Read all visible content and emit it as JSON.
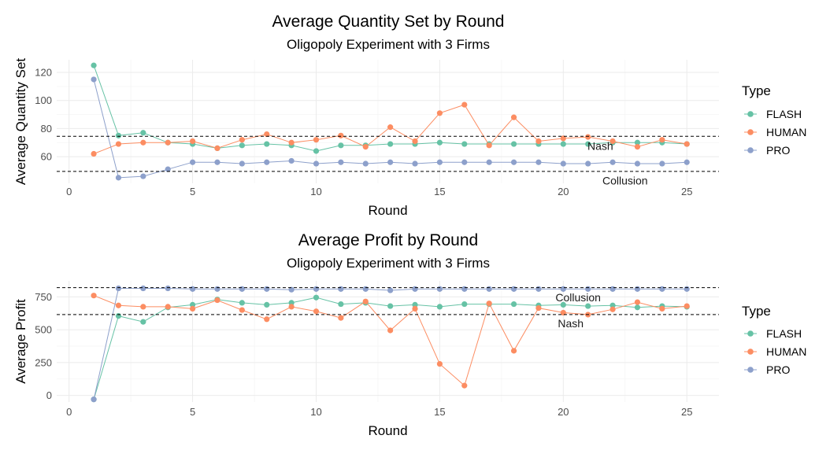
{
  "chart_data": [
    {
      "type": "line",
      "title": "Average Quantity Set by Round",
      "subtitle": "Oligopoly Experiment with 3 Firms",
      "xlabel": "Round",
      "ylabel": "Average Quantity Set",
      "xlim": [
        -0.5,
        26.3
      ],
      "ylim": [
        41,
        129
      ],
      "x_ticks": [
        0,
        5,
        10,
        15,
        20,
        25
      ],
      "y_ticks": [
        60,
        80,
        100,
        120
      ],
      "grid": true,
      "x": [
        1,
        2,
        3,
        4,
        5,
        6,
        7,
        8,
        9,
        10,
        11,
        12,
        13,
        14,
        15,
        16,
        17,
        18,
        19,
        20,
        21,
        22,
        23,
        24,
        25
      ],
      "series": [
        {
          "name": "FLASH",
          "color": "#66c2a5",
          "values": [
            125,
            75,
            77,
            70,
            69,
            66,
            68,
            69,
            68,
            64,
            68,
            68,
            69,
            69,
            70,
            69,
            69,
            69,
            69,
            69,
            69,
            70,
            70,
            70,
            69
          ]
        },
        {
          "name": "HUMAN",
          "color": "#fc8d62",
          "values": [
            62,
            69,
            70,
            70,
            71,
            66,
            72,
            76,
            70,
            72,
            75,
            67,
            81,
            71,
            91,
            97,
            68,
            88,
            71,
            73,
            74,
            71,
            67,
            72,
            69
          ]
        },
        {
          "name": "PRO",
          "color": "#8da0cb",
          "values": [
            115,
            45,
            46,
            51,
            56,
            56,
            55,
            56,
            57,
            55,
            56,
            55,
            56,
            55,
            56,
            56,
            56,
            56,
            56,
            55,
            55,
            56,
            55,
            55,
            56
          ]
        }
      ],
      "reference_lines": [
        {
          "label": "Nash",
          "y": 74.5,
          "label_x": 21.5,
          "label_y": 67.5
        },
        {
          "label": "Collusion",
          "y": 49.5,
          "label_x": 22.5,
          "label_y": 43
        }
      ],
      "legend": {
        "title": "Type",
        "position": "right"
      }
    },
    {
      "type": "line",
      "title": "Average Profit by Round",
      "subtitle": "Oligopoly Experiment with 3 Firms",
      "xlabel": "Round",
      "ylabel": "Average Profit",
      "xlim": [
        -0.5,
        26.3
      ],
      "ylim": [
        -50,
        872
      ],
      "x_ticks": [
        0,
        5,
        10,
        15,
        20,
        25
      ],
      "y_ticks": [
        0,
        250,
        500,
        750
      ],
      "grid": true,
      "x": [
        1,
        2,
        3,
        4,
        5,
        6,
        7,
        8,
        9,
        10,
        11,
        12,
        13,
        14,
        15,
        16,
        17,
        18,
        19,
        20,
        21,
        22,
        23,
        24,
        25
      ],
      "series": [
        {
          "name": "FLASH",
          "color": "#66c2a5",
          "values": [
            -30,
            605,
            560,
            670,
            690,
            730,
            705,
            690,
            705,
            745,
            695,
            705,
            680,
            690,
            675,
            695,
            695,
            695,
            685,
            690,
            680,
            685,
            670,
            680,
            675
          ]
        },
        {
          "name": "HUMAN",
          "color": "#fc8d62",
          "values": [
            760,
            685,
            675,
            675,
            660,
            725,
            650,
            580,
            675,
            640,
            590,
            715,
            495,
            660,
            240,
            75,
            700,
            340,
            665,
            630,
            615,
            655,
            710,
            660,
            680
          ]
        },
        {
          "name": "PRO",
          "color": "#8da0cb",
          "values": [
            -30,
            815,
            815,
            815,
            810,
            810,
            810,
            810,
            805,
            810,
            810,
            810,
            800,
            810,
            810,
            810,
            810,
            810,
            810,
            810,
            810,
            810,
            810,
            810,
            810
          ]
        }
      ],
      "reference_lines": [
        {
          "label": "Collusion",
          "y": 820,
          "label_x": 20.6,
          "label_y": 745
        },
        {
          "label": "Nash",
          "y": 615,
          "label_x": 20.3,
          "label_y": 548
        }
      ],
      "legend": {
        "title": "Type",
        "position": "right"
      }
    }
  ]
}
